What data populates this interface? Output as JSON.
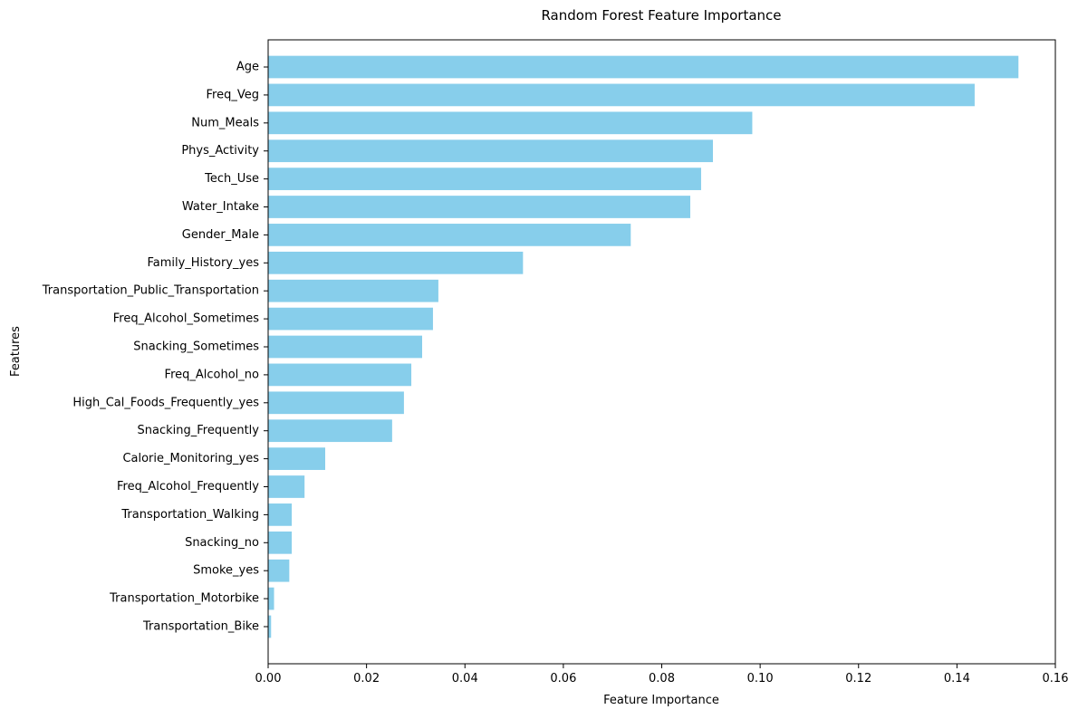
{
  "chart_data": {
    "type": "bar",
    "orientation": "horizontal",
    "title": "Random Forest Feature Importance",
    "xlabel": "Feature Importance",
    "ylabel": "Features",
    "xlim": [
      0,
      0.16
    ],
    "xticks": [
      0.0,
      0.02,
      0.04,
      0.06,
      0.08,
      0.1,
      0.12,
      0.14,
      0.16
    ],
    "xtick_labels": [
      "0.00",
      "0.02",
      "0.04",
      "0.06",
      "0.08",
      "0.10",
      "0.12",
      "0.14",
      "0.16"
    ],
    "grid": false,
    "bar_color": "#87ceeb",
    "categories": [
      "Age",
      "Freq_Veg",
      "Num_Meals",
      "Phys_Activity",
      "Tech_Use",
      "Water_Intake",
      "Gender_Male",
      "Family_History_yes",
      "Transportation_Public_Transportation",
      "Freq_Alcohol_Sometimes",
      "Snacking_Sometimes",
      "Freq_Alcohol_no",
      "High_Cal_Foods_Frequently_yes",
      "Snacking_Frequently",
      "Calorie_Monitoring_yes",
      "Freq_Alcohol_Frequently",
      "Transportation_Walking",
      "Snacking_no",
      "Smoke_yes",
      "Transportation_Motorbike",
      "Transportation_Bike"
    ],
    "values": [
      0.1525,
      0.1436,
      0.0984,
      0.0904,
      0.088,
      0.0858,
      0.0737,
      0.0518,
      0.0346,
      0.0335,
      0.0313,
      0.0291,
      0.0276,
      0.0252,
      0.0116,
      0.0074,
      0.0048,
      0.0048,
      0.0043,
      0.0012,
      0.0006
    ]
  }
}
